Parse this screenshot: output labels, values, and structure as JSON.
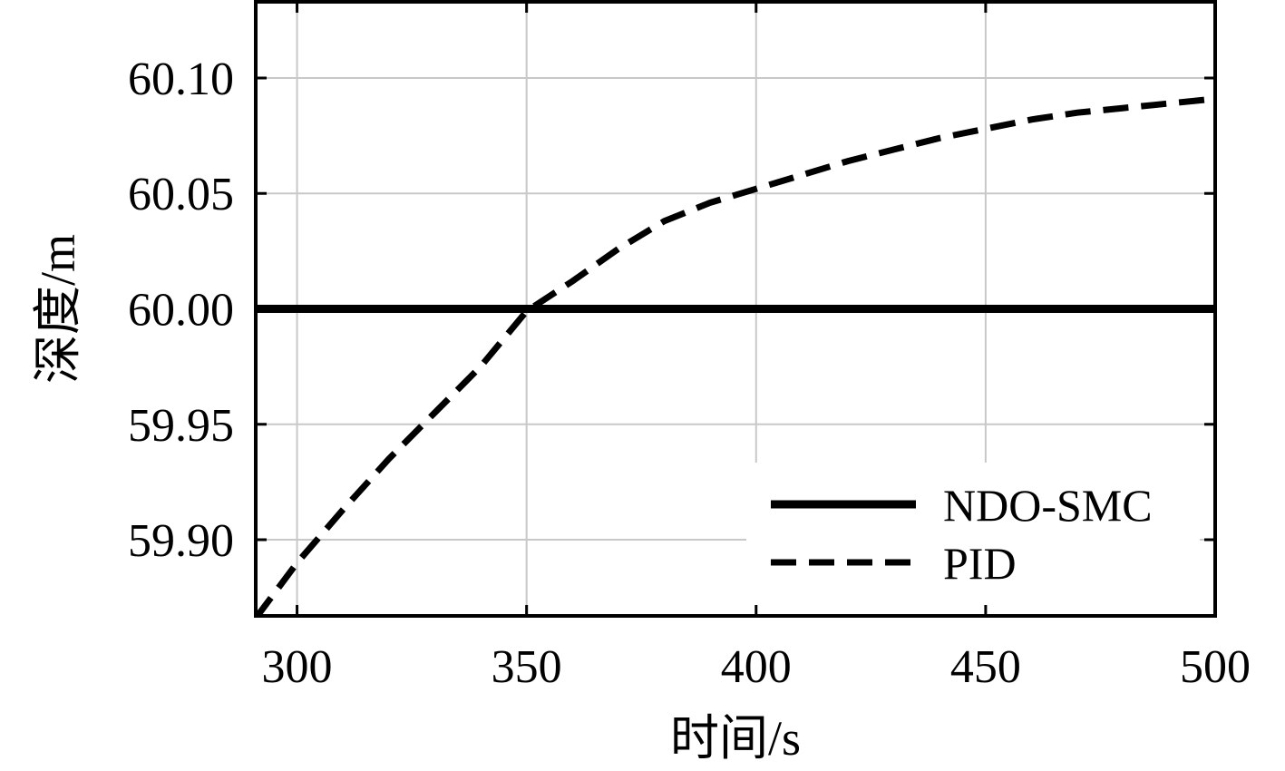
{
  "chart_data": {
    "type": "line",
    "xlabel": "时间/s",
    "ylabel": "深度/m",
    "xlim": [
      291,
      500
    ],
    "ylim": [
      59.867,
      60.133
    ],
    "x_ticks": [
      300,
      350,
      400,
      450,
      500
    ],
    "x_tick_labels": [
      "300",
      "350",
      "400",
      "450",
      "500"
    ],
    "y_ticks": [
      59.9,
      59.95,
      60.0,
      60.05,
      60.1
    ],
    "y_tick_labels": [
      "59.90",
      "59.95",
      "60.00",
      "60.05",
      "60.10"
    ],
    "grid": true,
    "legend_position": "bottom-right",
    "series": [
      {
        "name": "NDO-SMC",
        "style": "solid",
        "color": "#000000",
        "x": [
          291,
          300,
          350,
          400,
          450,
          500
        ],
        "y": [
          60.0,
          60.0,
          60.0,
          60.0,
          60.0,
          60.0
        ]
      },
      {
        "name": "PID",
        "style": "dashed",
        "color": "#000000",
        "x": [
          291,
          300,
          310,
          320,
          330,
          340,
          350,
          360,
          370,
          380,
          390,
          400,
          410,
          420,
          430,
          440,
          450,
          460,
          470,
          480,
          490,
          500
        ],
        "y": [
          59.866,
          59.89,
          59.913,
          59.935,
          59.955,
          59.975,
          59.999,
          60.012,
          60.026,
          60.038,
          60.046,
          60.052,
          60.058,
          60.064,
          60.069,
          60.074,
          60.078,
          60.082,
          60.085,
          60.087,
          60.089,
          60.091
        ]
      }
    ]
  }
}
